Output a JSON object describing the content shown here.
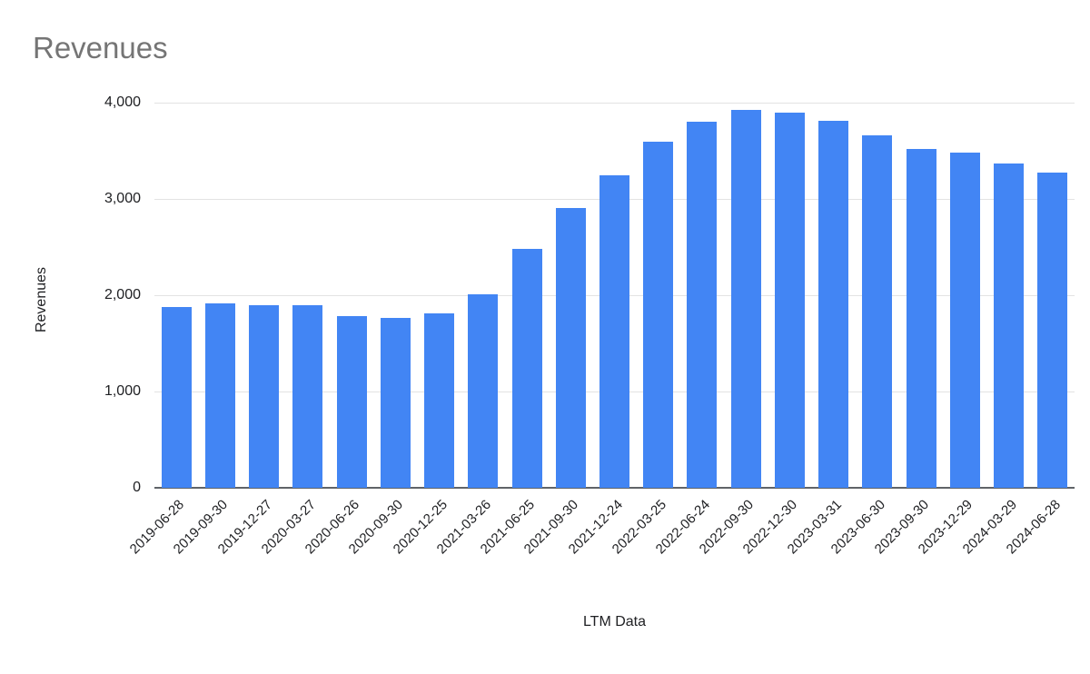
{
  "page": {
    "title": "Revenues"
  },
  "chart_data": {
    "type": "bar",
    "title": "Revenues",
    "xlabel": "LTM Data",
    "ylabel": "Revenues",
    "categories": [
      "2019-06-28",
      "2019-09-30",
      "2019-12-27",
      "2020-03-27",
      "2020-06-26",
      "2020-09-30",
      "2020-12-25",
      "2021-03-26",
      "2021-06-25",
      "2021-09-30",
      "2021-12-24",
      "2022-03-25",
      "2022-06-24",
      "2022-09-30",
      "2022-12-30",
      "2023-03-31",
      "2023-06-30",
      "2023-09-30",
      "2023-12-29",
      "2024-03-29",
      "2024-06-28"
    ],
    "values": [
      1880,
      1915,
      1895,
      1895,
      1780,
      1765,
      1815,
      2010,
      2480,
      2910,
      3250,
      3590,
      3800,
      3920,
      3900,
      3810,
      3660,
      3520,
      3480,
      3370,
      3270
    ],
    "ylim": [
      0,
      4000
    ],
    "yticks": [
      0,
      1000,
      2000,
      3000,
      4000
    ],
    "ytick_labels": [
      "0",
      "1,000",
      "2,000",
      "3,000",
      "4,000"
    ],
    "grid": true,
    "legend": "none",
    "bar_color": "#4285f4",
    "title_color": "#757575",
    "axis_text_color": "#202124"
  }
}
